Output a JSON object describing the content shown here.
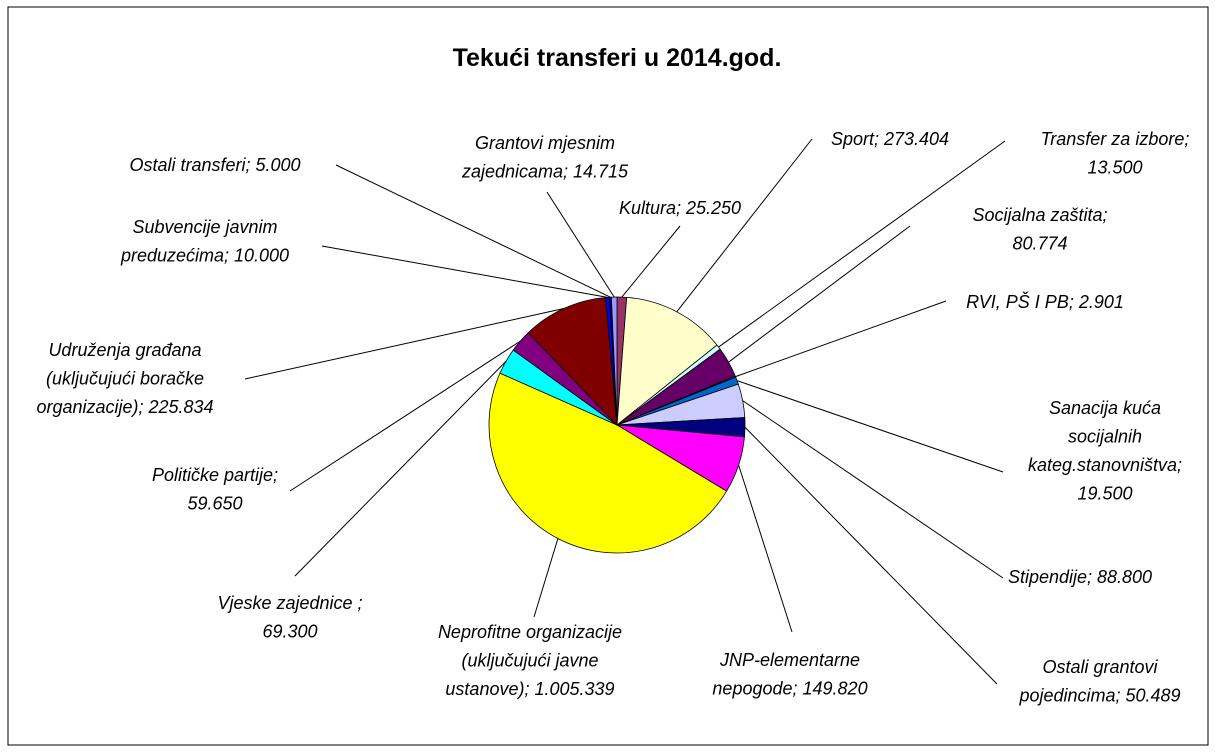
{
  "chart_data": {
    "type": "pie",
    "title": "Tekući transferi u 2014.god.",
    "labels": [
      "Kultura; 25.250",
      "Sport; 273.404",
      "Transfer za izbore;\n13.500",
      "Socijalna zaštita;\n80.774",
      "RVI, PŠ I PB; 2.901",
      "Sanacija kuća\nsocijalnih\nkateg.stanovništva;\n19.500",
      "Stipendije; 88.800",
      "Ostali grantovi\npojedincima; 50.489",
      "JNP-elementarne\nnepogode; 149.820",
      "Neprofitne organizacije\n(uključujući javne\nustanove); 1.005.339",
      "Vjeske zajednice ;\n69.300",
      "Političke partije;\n59.650",
      "Udruženja građana\n(uključujući boračke\norganizacije); 225.834",
      "Subvencije javnim\npreduzećima; 10.000",
      "Ostali transferi; 5.000",
      "Grantovi mjesnim\nzajednicama; 14.715"
    ],
    "values": [
      25250,
      273404,
      13500,
      80774,
      2901,
      19500,
      88800,
      50489,
      149820,
      1005339,
      69300,
      59650,
      225834,
      10000,
      5000,
      14715
    ],
    "colors": [
      "#993366",
      "#ffffcc",
      "#ccffff",
      "#660066",
      "#ff8080",
      "#0066cc",
      "#ccccff",
      "#000080",
      "#ff00ff",
      "#ffff00",
      "#00ffff",
      "#800080",
      "#800000",
      "#0000ff",
      "#000080",
      "#9999ff"
    ]
  }
}
